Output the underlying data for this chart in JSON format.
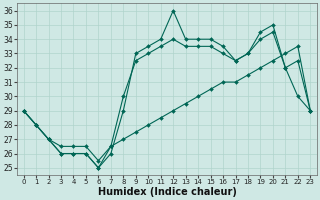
{
  "title": "",
  "xlabel": "Humidex (Indice chaleur)",
  "ylabel": "",
  "bg_color": "#cfe8e4",
  "grid_color": "#b0d4cc",
  "line_color": "#006655",
  "ylim": [
    24.5,
    36.5
  ],
  "xlim": [
    -0.5,
    23.5
  ],
  "yticks": [
    25,
    26,
    27,
    28,
    29,
    30,
    31,
    32,
    33,
    34,
    35,
    36
  ],
  "xticks": [
    0,
    1,
    2,
    3,
    4,
    5,
    6,
    7,
    8,
    9,
    10,
    11,
    12,
    13,
    14,
    15,
    16,
    17,
    18,
    19,
    20,
    21,
    22,
    23
  ],
  "line1_x": [
    0,
    1,
    2,
    3,
    4,
    5,
    6,
    7,
    8,
    9,
    10,
    11,
    12,
    13,
    14,
    15,
    16,
    17,
    18,
    19,
    20,
    21,
    22,
    23
  ],
  "line1_y": [
    29.0,
    28.0,
    27.0,
    26.0,
    26.0,
    26.0,
    25.0,
    26.0,
    29.0,
    33.0,
    33.5,
    34.0,
    36.0,
    34.0,
    34.0,
    34.0,
    33.5,
    32.5,
    33.0,
    34.5,
    35.0,
    32.0,
    30.0,
    29.0
  ],
  "line2_x": [
    0,
    1,
    2,
    3,
    4,
    5,
    6,
    7,
    8,
    9,
    10,
    11,
    12,
    13,
    14,
    15,
    16,
    17,
    18,
    19,
    20,
    21,
    22,
    23
  ],
  "line2_y": [
    29.0,
    28.0,
    27.0,
    26.0,
    26.0,
    26.0,
    25.0,
    26.5,
    30.0,
    32.5,
    33.0,
    33.5,
    34.0,
    33.5,
    33.5,
    33.5,
    33.0,
    32.5,
    33.0,
    34.0,
    34.5,
    32.0,
    32.5,
    29.0
  ],
  "line3_x": [
    0,
    1,
    2,
    3,
    4,
    5,
    6,
    7,
    8,
    9,
    10,
    11,
    12,
    13,
    14,
    15,
    16,
    17,
    18,
    19,
    20,
    21,
    22,
    23
  ],
  "line3_y": [
    29.0,
    28.0,
    27.0,
    26.5,
    26.5,
    26.5,
    25.5,
    26.5,
    27.0,
    27.5,
    28.0,
    28.5,
    29.0,
    29.5,
    30.0,
    30.5,
    31.0,
    31.0,
    31.5,
    32.0,
    32.5,
    33.0,
    33.5,
    29.0
  ]
}
